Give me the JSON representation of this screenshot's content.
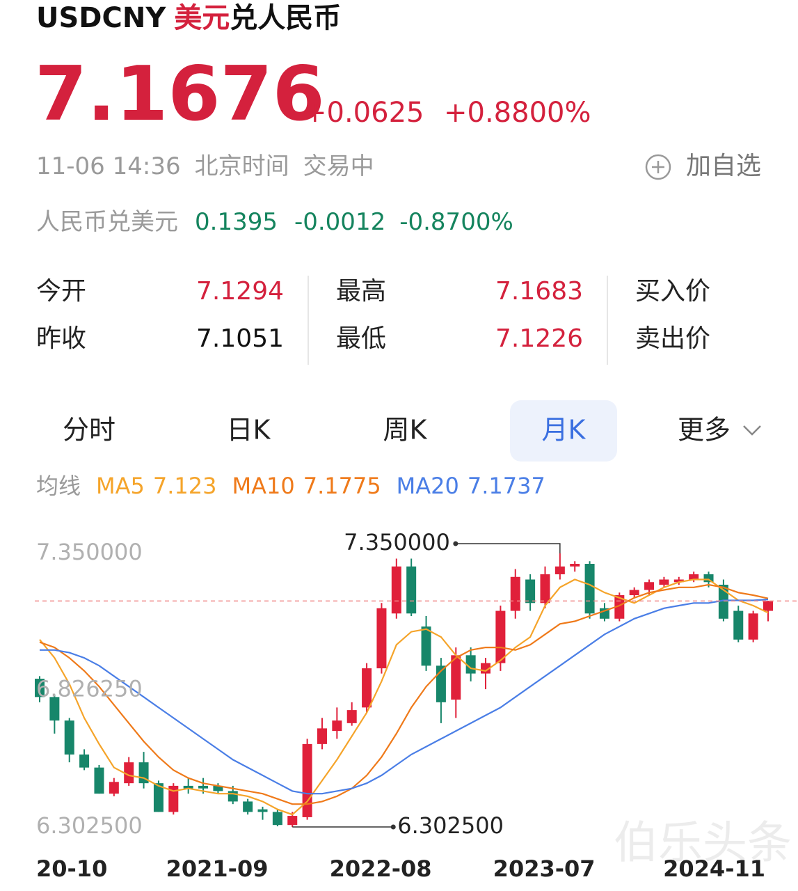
{
  "header": {
    "symbol": "USDCNY",
    "pair": "美元",
    "pair_rest": "兑人民币",
    "price": "7.1676",
    "change": "+0.0625",
    "change_pct": "+0.8800%",
    "time": "11-06 14:36",
    "timezone": "北京时间",
    "status": "交易中",
    "watchlist": "加自选"
  },
  "inverse": {
    "label": "人民币兑美元",
    "price": "0.1395",
    "change": "-0.0012",
    "change_pct": "-0.8700%"
  },
  "stats": [
    {
      "label": "今开",
      "value": "7.1294",
      "color": "#d4213d"
    },
    {
      "label": "昨收",
      "value": "7.1051",
      "color": "#111111"
    },
    {
      "label": "最高",
      "value": "7.1683",
      "color": "#d4213d"
    },
    {
      "label": "最低",
      "value": "7.1226",
      "color": "#d4213d"
    },
    {
      "label": "买入价"
    },
    {
      "label": "卖出价"
    }
  ],
  "tabs": [
    "分时",
    "日K",
    "周K",
    "月K",
    "更多"
  ],
  "active_tab": "月K",
  "ma_label": "均线",
  "watermark": "伯乐头条",
  "chart_data": {
    "type": "candlestick",
    "categories": [
      "20-10",
      null,
      null,
      null,
      null,
      null,
      null,
      null,
      null,
      null,
      null,
      "2021-09",
      null,
      null,
      null,
      null,
      null,
      null,
      null,
      null,
      null,
      null,
      "2022-08",
      null,
      null,
      null,
      null,
      null,
      null,
      null,
      null,
      null,
      null,
      "2023-07",
      null,
      null,
      null,
      null,
      null,
      null,
      null,
      null,
      null,
      null,
      null,
      null,
      null,
      null,
      null,
      "2024-11"
    ],
    "open": [
      6.87,
      6.8,
      6.71,
      6.58,
      6.53,
      6.43,
      6.47,
      6.55,
      6.47,
      6.36,
      6.46,
      6.46,
      6.46,
      6.44,
      6.4,
      6.37,
      6.36,
      6.31,
      6.34,
      6.62,
      6.67,
      6.7,
      6.76,
      6.91,
      7.12,
      7.3,
      7.07,
      6.92,
      6.79,
      6.96,
      6.89,
      6.93,
      7.13,
      7.25,
      7.16,
      7.27,
      7.3,
      7.31,
      7.14,
      7.1,
      7.19,
      7.21,
      7.23,
      7.24,
      7.25,
      7.27,
      7.23,
      7.13,
      7.02,
      7.13
    ],
    "high": [
      6.88,
      6.81,
      6.72,
      6.6,
      6.54,
      6.49,
      6.57,
      6.59,
      6.48,
      6.47,
      6.49,
      6.49,
      6.47,
      6.46,
      6.41,
      6.38,
      6.37,
      6.36,
      6.64,
      6.72,
      6.76,
      6.78,
      6.93,
      7.16,
      7.33,
      7.33,
      7.11,
      6.95,
      6.99,
      6.99,
      6.95,
      7.15,
      7.29,
      7.27,
      7.3,
      7.35,
      7.32,
      7.32,
      7.16,
      7.2,
      7.22,
      7.25,
      7.26,
      7.26,
      7.28,
      7.28,
      7.25,
      7.15,
      7.13,
      7.1683
    ],
    "low": [
      6.78,
      6.66,
      6.55,
      6.52,
      6.43,
      6.42,
      6.46,
      6.45,
      6.36,
      6.35,
      6.43,
      6.43,
      6.43,
      6.39,
      6.35,
      6.33,
      6.305,
      6.3025,
      6.33,
      6.6,
      6.64,
      6.69,
      6.74,
      6.89,
      7.1,
      7.11,
      6.9,
      6.7,
      6.72,
      6.86,
      6.83,
      6.9,
      7.1,
      7.13,
      7.14,
      7.25,
      7.28,
      7.1,
      7.09,
      7.09,
      7.18,
      7.19,
      7.22,
      7.23,
      7.24,
      7.22,
      7.09,
      7.01,
      7.01,
      7.09
    ],
    "close": [
      6.8,
      6.71,
      6.58,
      6.53,
      6.43,
      6.475,
      6.55,
      6.47,
      6.36,
      6.46,
      6.45,
      6.45,
      6.44,
      6.4,
      6.36,
      6.36,
      6.31,
      6.345,
      6.62,
      6.68,
      6.71,
      6.75,
      6.91,
      7.14,
      7.3,
      7.12,
      6.92,
      6.78,
      6.96,
      6.89,
      6.93,
      7.13,
      7.26,
      7.16,
      7.27,
      7.3,
      7.31,
      7.12,
      7.1,
      7.19,
      7.21,
      7.24,
      7.25,
      7.25,
      7.27,
      7.24,
      7.1,
      7.02,
      7.12,
      7.1676
    ],
    "up_color": "#e0203a",
    "down_color": "#17866a",
    "series": [
      {
        "name": "MA5",
        "color": "#f5a42a",
        "values": [
          7.02,
          6.95,
          6.85,
          6.72,
          6.62,
          6.53,
          6.5,
          6.49,
          6.46,
          6.44,
          6.45,
          6.44,
          6.43,
          6.43,
          6.42,
          6.4,
          6.37,
          6.35,
          6.4,
          6.48,
          6.56,
          6.65,
          6.74,
          6.86,
          7.0,
          7.05,
          7.06,
          7.03,
          6.96,
          6.91,
          6.9,
          6.94,
          6.99,
          7.03,
          7.15,
          7.22,
          7.25,
          7.23,
          7.2,
          7.18,
          7.16,
          7.19,
          7.22,
          7.24,
          7.25,
          7.25,
          7.21,
          7.17,
          7.15,
          7.123
        ]
      },
      {
        "name": "MA10",
        "color": "#ef7a1a",
        "values": [
          7.01,
          6.99,
          6.95,
          6.9,
          6.84,
          6.77,
          6.7,
          6.63,
          6.57,
          6.52,
          6.49,
          6.47,
          6.46,
          6.45,
          6.44,
          6.43,
          6.41,
          6.39,
          6.39,
          6.4,
          6.42,
          6.45,
          6.5,
          6.57,
          6.66,
          6.76,
          6.84,
          6.9,
          6.95,
          6.98,
          6.99,
          6.99,
          6.98,
          7.0,
          7.04,
          7.08,
          7.09,
          7.11,
          7.13,
          7.15,
          7.18,
          7.2,
          7.21,
          7.22,
          7.22,
          7.23,
          7.22,
          7.2,
          7.19,
          7.1775
        ]
      },
      {
        "name": "MA20",
        "color": "#4a7ee6",
        "values": [
          6.98,
          6.98,
          6.97,
          6.95,
          6.92,
          6.88,
          6.84,
          6.8,
          6.76,
          6.72,
          6.68,
          6.64,
          6.6,
          6.56,
          6.53,
          6.5,
          6.47,
          6.44,
          6.43,
          6.43,
          6.44,
          6.45,
          6.47,
          6.5,
          6.54,
          6.58,
          6.61,
          6.64,
          6.67,
          6.7,
          6.73,
          6.76,
          6.8,
          6.84,
          6.88,
          6.92,
          6.96,
          7.0,
          7.04,
          7.07,
          7.1,
          7.12,
          7.14,
          7.15,
          7.16,
          7.16,
          7.17,
          7.17,
          7.17,
          7.1737
        ]
      }
    ],
    "ylim": [
      6.3025,
      7.35
    ],
    "yticks": [
      {
        "value": 7.35,
        "label": "7.350000"
      },
      {
        "value": 6.82625,
        "label": "6.826250"
      },
      {
        "value": 6.3025,
        "label": "6.302500"
      }
    ],
    "high_marker": {
      "value": 7.35,
      "label": "7.350000"
    },
    "low_marker": {
      "value": 6.3025,
      "label": "6.302500"
    },
    "last_price_line": true
  }
}
